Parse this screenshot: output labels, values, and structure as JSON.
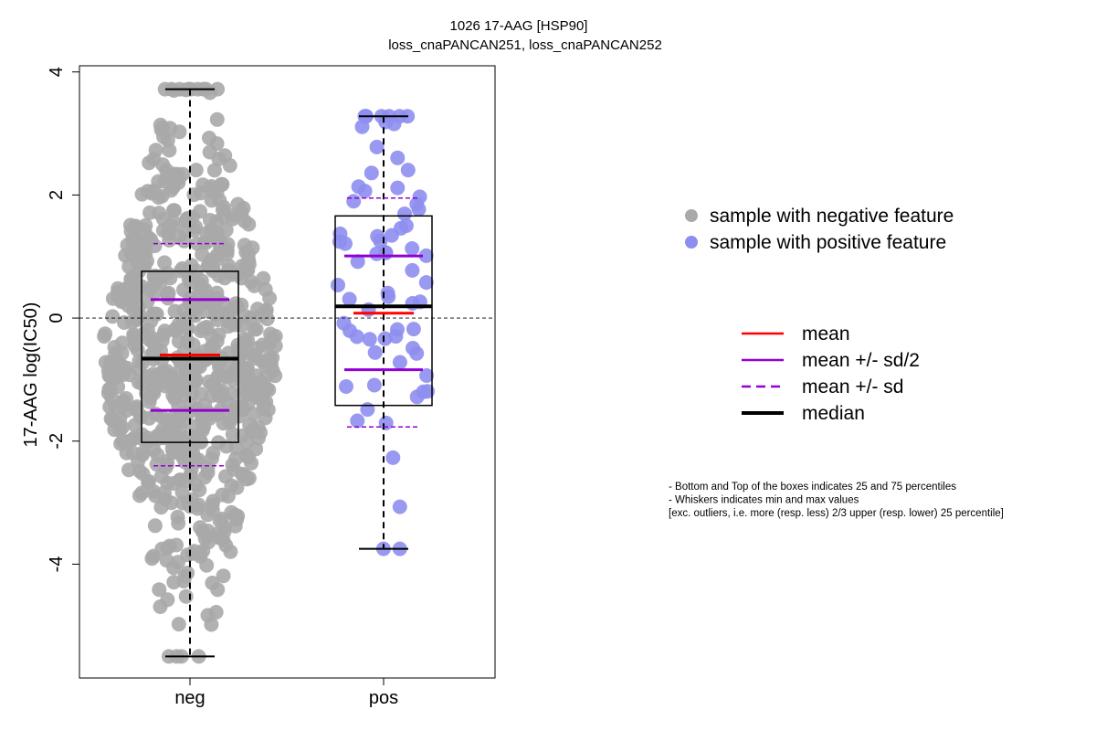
{
  "chart_data": {
    "type": "boxplot",
    "title": "1026 17-AAG [HSP90]",
    "subtitle": "loss_cnaPANCAN251, loss_cnaPANCAN252",
    "ylabel": "17-AAG log(IC50)",
    "xlabel": "",
    "ylim": [
      -5.85,
      4.1
    ],
    "y_ticks": [
      {
        "value": -4,
        "label": "-4"
      },
      {
        "value": -2,
        "label": "-2"
      },
      {
        "value": 0,
        "label": "0"
      },
      {
        "value": 2,
        "label": "2"
      },
      {
        "value": 4,
        "label": "4"
      }
    ],
    "reference_line": 0,
    "groups": [
      {
        "category": "neg",
        "color": "#a9a9a9",
        "n_points": 720,
        "q1": -2.02,
        "median": -0.66,
        "q3": 0.76,
        "whisker_low": -5.5,
        "whisker_high": 3.72,
        "mean": -0.6,
        "sd_half_low": -1.5,
        "sd_half_high": 0.3,
        "sd_low": -2.4,
        "sd_high": 1.21
      },
      {
        "category": "pos",
        "color": "#8e8ef0",
        "n_points": 70,
        "q1": -1.42,
        "median": 0.19,
        "q3": 1.66,
        "whisker_low": -3.75,
        "whisker_high": 3.28,
        "mean": 0.08,
        "sd_half_low": -0.84,
        "sd_half_high": 1.01,
        "sd_low": -1.77,
        "sd_high": 1.95
      }
    ],
    "legend_points": [
      {
        "label": "sample with negative feature",
        "color": "#a9a9a9"
      },
      {
        "label": "sample with positive feature",
        "color": "#8e8ef0"
      }
    ],
    "legend_lines": [
      {
        "label": "mean",
        "color": "#ff0000",
        "style": "solid"
      },
      {
        "label": "mean +/- sd/2",
        "color": "#9400d3",
        "style": "solid"
      },
      {
        "label": "mean +/- sd",
        "color": "#9400d3",
        "style": "dashed"
      },
      {
        "label": "median",
        "color": "#000000",
        "style": "bold"
      }
    ],
    "notes": [
      "- Bottom and Top of the boxes indicates 25 and 75 percentiles",
      "- Whiskers indicates min and max values",
      "[exc. outliers, i.e. more (resp. less) 2/3 upper (resp. lower) 25 percentile]"
    ]
  }
}
